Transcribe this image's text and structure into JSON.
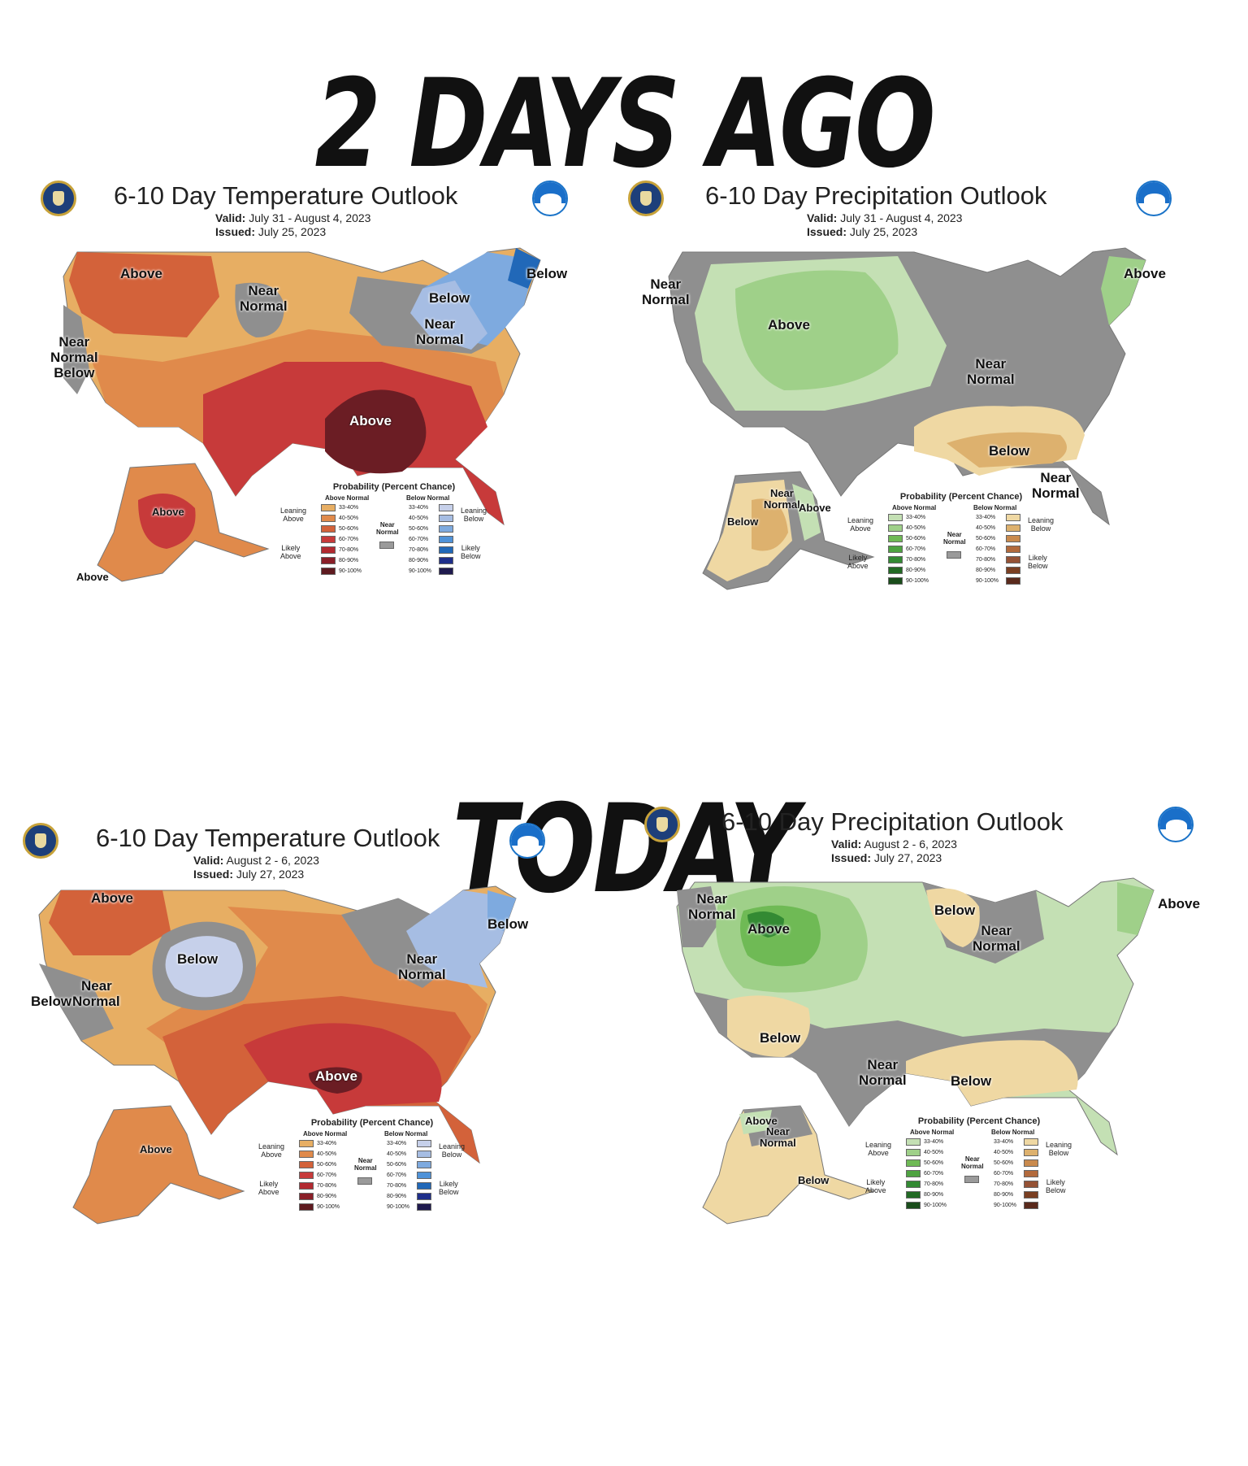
{
  "headlines": {
    "top": "2 DAYS AGO",
    "bottom": "TODAY"
  },
  "colors": {
    "gray": "#8f8f8f",
    "temp_above": [
      "#e7ae63",
      "#e08a4b",
      "#d3623a",
      "#c73a3a",
      "#b22a30",
      "#8a1f28",
      "#5e1a1f"
    ],
    "temp_below": [
      "#c6d0ea",
      "#a6bde3",
      "#7eaadf",
      "#4f92d8",
      "#2168b8",
      "#1e2e8a",
      "#1f1a4e"
    ],
    "precip_above": [
      "#c4e0b4",
      "#9fd089",
      "#6fba55",
      "#4ea341",
      "#338a33",
      "#226a24",
      "#1a4d1b"
    ],
    "precip_below": [
      "#efd8a3",
      "#ddb16e",
      "#c98a4d",
      "#b26a3c",
      "#955235",
      "#7a3f22",
      "#5a2a1c"
    ]
  },
  "legend_text": {
    "title": "Probability (Percent Chance)",
    "above_head": "Above Normal",
    "below_head": "Below Normal",
    "near_normal": "Near\nNormal",
    "leaning_above": "Leaning\nAbove",
    "likely_above": "Likely\nAbove",
    "leaning_below": "Leaning\nBelow",
    "likely_below": "Likely\nBelow",
    "ranges": [
      "33-40%",
      "40-50%",
      "50-60%",
      "60-70%",
      "70-80%",
      "80-90%",
      "90-100%"
    ]
  },
  "panels": {
    "temp_old": {
      "title": "6-10 Day Temperature Outlook",
      "valid_label": "Valid:",
      "valid": "July 31 - August 4, 2023",
      "issued_label": "Issued:",
      "issued": "July 25, 2023",
      "labels": [
        "Above",
        "Near\nNormal",
        "Below",
        "Below",
        "Near\nNormal",
        "Near\nNormal\nBelow",
        "Above",
        "Above",
        "Above"
      ]
    },
    "precip_old": {
      "title": "6-10 Day Precipitation Outlook",
      "valid_label": "Valid:",
      "valid": "July 31 - August 4, 2023",
      "issued_label": "Issued:",
      "issued": "July 25, 2023",
      "labels": [
        "Near\nNormal",
        "Above",
        "Above",
        "Near\nNormal",
        "Below",
        "Near\nNormal",
        "Near\nNormal",
        "Above",
        "Below"
      ]
    },
    "temp_new": {
      "title": "6-10 Day Temperature Outlook",
      "valid_label": "Valid:",
      "valid": "August 2 - 6, 2023",
      "issued_label": "Issued:",
      "issued": "July 27, 2023",
      "labels": [
        "Above",
        "Below",
        "Below",
        "Near\nNormal",
        "Near",
        "Below",
        "Normal",
        "Above",
        "Above"
      ]
    },
    "precip_new": {
      "title": "6-10 Day Precipitation Outlook",
      "valid_label": "Valid:",
      "valid": "August 2 - 6, 2023",
      "issued_label": "Issued:",
      "issued": "July 27, 2023",
      "labels": [
        "Near\nNormal",
        "Above",
        "Below",
        "Near\nNormal",
        "Above",
        "Below",
        "Near\nNormal",
        "Below",
        "Above",
        "Near\nNormal",
        "Below"
      ]
    }
  }
}
